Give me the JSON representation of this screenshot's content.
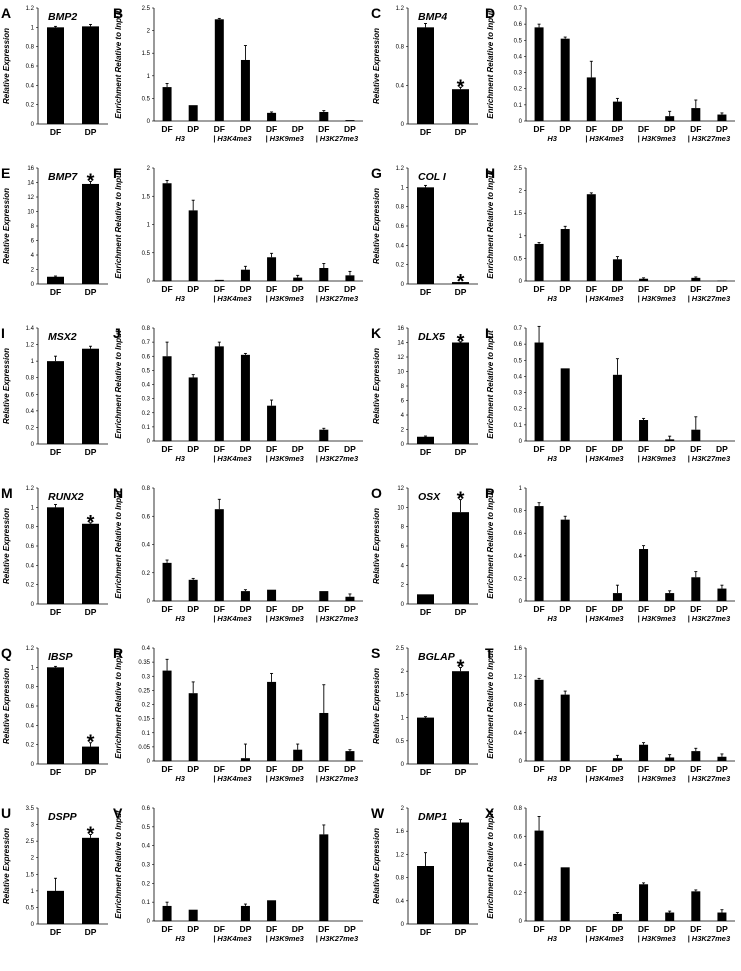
{
  "axis_labels": {
    "expression": "Relative Expression",
    "enrichment": "Enrichment Relative to Input"
  },
  "chart_data": [
    {
      "panel": "A",
      "type": "bar",
      "gene": "BMP2",
      "ylabel": "Relative Expression",
      "ylim": [
        0,
        1.2
      ],
      "yticks": [
        "0",
        "0.2",
        "0.4",
        "0.6",
        "0.8",
        "1",
        "1.2"
      ],
      "categories": [
        "DF",
        "DP"
      ],
      "values": [
        1.0,
        1.01
      ],
      "errors": [
        0.01,
        0.02
      ],
      "significant": [
        false,
        false
      ]
    },
    {
      "panel": "B",
      "type": "bar",
      "ylabel": "Enrichment Relative to Input",
      "ylim": [
        0,
        2.5
      ],
      "yticks": [
        "0",
        "0.5",
        "1",
        "1.5",
        "2",
        "2.5"
      ],
      "groups": [
        "H3",
        "| H3K4me3",
        "| H3K9me3",
        "| H3K27me3"
      ],
      "categories": [
        "DF",
        "DP",
        "DF",
        "DP",
        "DF",
        "DP",
        "DF",
        "DP"
      ],
      "values": [
        0.75,
        0.35,
        2.25,
        1.35,
        0.18,
        0.0,
        0.2,
        0.02
      ],
      "errors": [
        0.08,
        0.0,
        0.02,
        0.32,
        0.02,
        0.0,
        0.03,
        0.0
      ]
    },
    {
      "panel": "C",
      "type": "bar",
      "gene": "BMP4",
      "ylabel": "Relative Expression",
      "ylim": [
        0,
        1.2
      ],
      "yticks": [
        "0",
        "0.4",
        "0.8",
        "1.2"
      ],
      "categories": [
        "DF",
        "DP"
      ],
      "values": [
        1.0,
        0.36
      ],
      "errors": [
        0.04,
        0.02
      ],
      "significant": [
        false,
        true
      ]
    },
    {
      "panel": "D",
      "type": "bar",
      "ylabel": "Enrichment Relative to Input",
      "ylim": [
        0,
        0.7
      ],
      "yticks": [
        "0",
        "0.1",
        "0.2",
        "0.3",
        "0.4",
        "0.5",
        "0.6",
        "0.7"
      ],
      "groups": [
        "H3",
        "| H3K4me3",
        "| H3K9me3",
        "| H3K27me3"
      ],
      "categories": [
        "DF",
        "DP",
        "DF",
        "DP",
        "DF",
        "DP",
        "DF",
        "DP"
      ],
      "values": [
        0.58,
        0.51,
        0.27,
        0.12,
        0.0,
        0.03,
        0.08,
        0.04
      ],
      "errors": [
        0.02,
        0.01,
        0.1,
        0.02,
        0.0,
        0.03,
        0.05,
        0.01
      ]
    },
    {
      "panel": "E",
      "type": "bar",
      "gene": "BMP7",
      "ylabel": "Relative Expression",
      "ylim": [
        0,
        16
      ],
      "yticks": [
        "0",
        "2",
        "4",
        "6",
        "8",
        "10",
        "12",
        "14",
        "16"
      ],
      "categories": [
        "DF",
        "DP"
      ],
      "values": [
        1.0,
        13.8
      ],
      "errors": [
        0.1,
        0.35
      ],
      "significant": [
        false,
        true
      ]
    },
    {
      "panel": "F",
      "type": "bar",
      "ylabel": "Enrichment Relative to Input",
      "ylim": [
        0,
        2
      ],
      "yticks": [
        "0",
        "0.5",
        "1",
        "1.5",
        "2"
      ],
      "groups": [
        "H3",
        "| H3K4me3",
        "| H3K9me3",
        "| H3K27me3"
      ],
      "categories": [
        "DF",
        "DP",
        "DF",
        "DP",
        "DF",
        "DP",
        "DF",
        "DP"
      ],
      "values": [
        1.73,
        1.25,
        0.02,
        0.2,
        0.42,
        0.06,
        0.23,
        0.1
      ],
      "errors": [
        0.05,
        0.18,
        0.0,
        0.06,
        0.07,
        0.04,
        0.08,
        0.07
      ]
    },
    {
      "panel": "G",
      "type": "bar",
      "gene": "COL I",
      "ylabel": "Relative Expression",
      "ylim": [
        0,
        1.2
      ],
      "yticks": [
        "0",
        "0.2",
        "0.4",
        "0.6",
        "0.8",
        "1",
        "1.2"
      ],
      "categories": [
        "DF",
        "DP"
      ],
      "values": [
        1.0,
        0.02
      ],
      "errors": [
        0.02,
        0.0
      ],
      "significant": [
        false,
        true
      ]
    },
    {
      "panel": "H",
      "type": "bar",
      "ylabel": "Enrichment Relative to Input",
      "ylim": [
        0,
        2.5
      ],
      "yticks": [
        "0",
        "0.5",
        "1",
        "1.5",
        "2",
        "2.5"
      ],
      "groups": [
        "H3",
        "| H3K4me3",
        "| H3K9me3",
        "| H3K27me3"
      ],
      "categories": [
        "DF",
        "DP",
        "DF",
        "DP",
        "DF",
        "DP",
        "DF",
        "DP"
      ],
      "values": [
        0.82,
        1.15,
        1.92,
        0.48,
        0.05,
        0.0,
        0.07,
        0.01
      ],
      "errors": [
        0.03,
        0.06,
        0.03,
        0.06,
        0.02,
        0.0,
        0.02,
        0.0
      ]
    },
    {
      "panel": "I",
      "type": "bar",
      "gene": "MSX2",
      "ylabel": "Relative Expression",
      "ylim": [
        0,
        1.4
      ],
      "yticks": [
        "0",
        "0.2",
        "0.4",
        "0.6",
        "0.8",
        "1",
        "1.2",
        "1.4"
      ],
      "categories": [
        "DF",
        "DP"
      ],
      "values": [
        1.0,
        1.15
      ],
      "errors": [
        0.06,
        0.03
      ],
      "significant": [
        false,
        false
      ]
    },
    {
      "panel": "J",
      "type": "bar",
      "ylabel": "Enrichment Relative to Input",
      "ylim": [
        0,
        0.8
      ],
      "yticks": [
        "0",
        "0.1",
        "0.2",
        "0.3",
        "0.4",
        "0.5",
        "0.6",
        "0.7",
        "0.8"
      ],
      "groups": [
        "H3",
        "| H3K4me3",
        "| H3K9me3",
        "| H3K27me3"
      ],
      "categories": [
        "DF",
        "DP",
        "DF",
        "DP",
        "DF",
        "DP",
        "DF",
        "DP"
      ],
      "values": [
        0.6,
        0.45,
        0.67,
        0.61,
        0.25,
        0.0,
        0.08,
        0.0
      ],
      "errors": [
        0.1,
        0.02,
        0.03,
        0.01,
        0.04,
        0.0,
        0.01,
        0.0
      ]
    },
    {
      "panel": "K",
      "type": "bar",
      "gene": "DLX5",
      "ylabel": "Relative Expression",
      "ylim": [
        0,
        16
      ],
      "yticks": [
        "0",
        "2",
        "4",
        "6",
        "8",
        "10",
        "12",
        "14",
        "16"
      ],
      "categories": [
        "DF",
        "DP"
      ],
      "values": [
        1.0,
        14.0
      ],
      "errors": [
        0.1,
        0.1
      ],
      "significant": [
        false,
        true
      ]
    },
    {
      "panel": "L",
      "type": "bar",
      "ylabel": "Enrichment Relative to Input",
      "ylim": [
        0,
        0.7
      ],
      "yticks": [
        "0",
        "0.1",
        "0.2",
        "0.3",
        "0.4",
        "0.5",
        "0.6",
        "0.7"
      ],
      "groups": [
        "H3",
        "| H3K4me3",
        "| H3K9me3",
        "| H3K27me3"
      ],
      "categories": [
        "DF",
        "DP",
        "DF",
        "DP",
        "DF",
        "DP",
        "DF",
        "DP"
      ],
      "values": [
        0.61,
        0.45,
        0.0,
        0.41,
        0.13,
        0.01,
        0.07,
        0.0
      ],
      "errors": [
        0.1,
        0.0,
        0.0,
        0.1,
        0.01,
        0.02,
        0.08,
        0.0
      ]
    },
    {
      "panel": "M",
      "type": "bar",
      "gene": "RUNX2",
      "ylabel": "Relative Expression",
      "ylim": [
        0,
        1.2
      ],
      "yticks": [
        "0",
        "0.2",
        "0.4",
        "0.6",
        "0.8",
        "1",
        "1.2"
      ],
      "categories": [
        "DF",
        "DP"
      ],
      "values": [
        1.0,
        0.83
      ],
      "errors": [
        0.03,
        0.01
      ],
      "significant": [
        false,
        true
      ]
    },
    {
      "panel": "N",
      "type": "bar",
      "ylabel": "Enrichment Relative to Input",
      "ylim": [
        0,
        0.8
      ],
      "yticks": [
        "0",
        "0.2",
        "0.4",
        "0.6",
        "0.8"
      ],
      "groups": [
        "H3",
        "| H3K4me3",
        "| H3K9me3",
        "| H3K27me3"
      ],
      "categories": [
        "DF",
        "DP",
        "DF",
        "DP",
        "DF",
        "DP",
        "DF",
        "DP"
      ],
      "values": [
        0.27,
        0.15,
        0.65,
        0.07,
        0.08,
        0.0,
        0.07,
        0.03
      ],
      "errors": [
        0.02,
        0.01,
        0.07,
        0.01,
        0.0,
        0.0,
        0.0,
        0.02
      ]
    },
    {
      "panel": "O",
      "type": "bar",
      "gene": "OSX",
      "ylabel": "Relative Expression",
      "ylim": [
        0,
        12
      ],
      "yticks": [
        "0",
        "2",
        "4",
        "6",
        "8",
        "10",
        "12"
      ],
      "categories": [
        "DF",
        "DP"
      ],
      "values": [
        1.0,
        9.5
      ],
      "errors": [
        0.0,
        1.3
      ],
      "significant": [
        false,
        true
      ]
    },
    {
      "panel": "P",
      "type": "bar",
      "ylabel": "Enrichment Relative to Input",
      "ylim": [
        0,
        1
      ],
      "yticks": [
        "0",
        "0.2",
        "0.4",
        "0.6",
        "0.8",
        "1"
      ],
      "groups": [
        "H3",
        "| H3K4me3",
        "| H3K9me3",
        "| H3K27me3"
      ],
      "categories": [
        "DF",
        "DP",
        "DF",
        "DP",
        "DF",
        "DP",
        "DF",
        "DP"
      ],
      "values": [
        0.84,
        0.72,
        0.0,
        0.07,
        0.46,
        0.07,
        0.21,
        0.11
      ],
      "errors": [
        0.03,
        0.03,
        0.0,
        0.07,
        0.03,
        0.02,
        0.05,
        0.03
      ]
    },
    {
      "panel": "Q",
      "type": "bar",
      "gene": "IBSP",
      "ylabel": "Relative Expression",
      "ylim": [
        0,
        1.2
      ],
      "yticks": [
        "0",
        "0.2",
        "0.4",
        "0.6",
        "0.8",
        "1",
        "1.2"
      ],
      "categories": [
        "DF",
        "DP"
      ],
      "values": [
        1.0,
        0.18
      ],
      "errors": [
        0.01,
        0.04
      ],
      "significant": [
        false,
        true
      ]
    },
    {
      "panel": "R",
      "type": "bar",
      "ylabel": "Enrichment Relative to Input",
      "ylim": [
        0,
        0.4
      ],
      "yticks": [
        "0",
        "0.05",
        "0.1",
        "0.15",
        "0.2",
        "0.25",
        "0.3",
        "0.35",
        "0.4"
      ],
      "groups": [
        "H3",
        "| H3K4me3",
        "| H3K9me3",
        "| H3K27me3"
      ],
      "categories": [
        "DF",
        "DP",
        "DF",
        "DP",
        "DF",
        "DP",
        "DF",
        "DP"
      ],
      "values": [
        0.32,
        0.24,
        0.0,
        0.01,
        0.28,
        0.04,
        0.17,
        0.035
      ],
      "errors": [
        0.04,
        0.04,
        0.0,
        0.05,
        0.03,
        0.02,
        0.1,
        0.005
      ]
    },
    {
      "panel": "S",
      "type": "bar",
      "gene": "BGLAP",
      "ylabel": "Relative Expression",
      "ylim": [
        0,
        2.5
      ],
      "yticks": [
        "0",
        "0.5",
        "1",
        "1.5",
        "2",
        "2.5"
      ],
      "categories": [
        "DF",
        "DP"
      ],
      "values": [
        1.0,
        2.0
      ],
      "errors": [
        0.02,
        0.08
      ],
      "significant": [
        false,
        true
      ]
    },
    {
      "panel": "T",
      "type": "bar",
      "ylabel": "Enrichment Relative to Input",
      "ylim": [
        0,
        1.6
      ],
      "yticks": [
        "0",
        "0.4",
        "0.8",
        "1.2",
        "1.6"
      ],
      "groups": [
        "H3",
        "| H3K4me3",
        "| H3K9me3",
        "| H3K27me3"
      ],
      "categories": [
        "DF",
        "DP",
        "DF",
        "DP",
        "DF",
        "DP",
        "DF",
        "DP"
      ],
      "values": [
        1.15,
        0.94,
        0.0,
        0.04,
        0.23,
        0.05,
        0.14,
        0.06
      ],
      "errors": [
        0.02,
        0.05,
        0.0,
        0.04,
        0.03,
        0.04,
        0.04,
        0.04
      ]
    },
    {
      "panel": "U",
      "type": "bar",
      "gene": "DSPP",
      "ylabel": "Relative Expression",
      "ylim": [
        0,
        3.5
      ],
      "yticks": [
        "0",
        "0.5",
        "1",
        "1.5",
        "2",
        "2.5",
        "3",
        "3.5"
      ],
      "categories": [
        "DF",
        "DP"
      ],
      "values": [
        1.0,
        2.6
      ],
      "errors": [
        0.38,
        0.1
      ],
      "significant": [
        false,
        true
      ]
    },
    {
      "panel": "V",
      "type": "bar",
      "ylabel": "Enrichment Relative to Input",
      "ylim": [
        0,
        0.6
      ],
      "yticks": [
        "0",
        "0.1",
        "0.2",
        "0.3",
        "0.4",
        "0.5",
        "0.6"
      ],
      "groups": [
        "H3",
        "| H3K4me3",
        "| H3K9me3",
        "| H3K27me3"
      ],
      "categories": [
        "DF",
        "DP",
        "DF",
        "DP",
        "DF",
        "DP",
        "DF",
        "DP"
      ],
      "values": [
        0.08,
        0.06,
        0.0,
        0.08,
        0.11,
        0.0,
        0.46,
        0.0
      ],
      "errors": [
        0.02,
        0.0,
        0.0,
        0.01,
        0.0,
        0.0,
        0.05,
        0.0
      ]
    },
    {
      "panel": "W",
      "type": "bar",
      "gene": "DMP1",
      "ylabel": "Relative Expression",
      "ylim": [
        0,
        2
      ],
      "yticks": [
        "0",
        "0.4",
        "0.8",
        "1.2",
        "1.6",
        "2"
      ],
      "categories": [
        "DF",
        "DP"
      ],
      "values": [
        1.0,
        1.75
      ],
      "errors": [
        0.23,
        0.05
      ],
      "significant": [
        false,
        false
      ]
    },
    {
      "panel": "X",
      "type": "bar",
      "ylabel": "Enrichment Relative to Input",
      "ylim": [
        0,
        0.8
      ],
      "yticks": [
        "0",
        "0.2",
        "0.4",
        "0.6",
        "0.8"
      ],
      "groups": [
        "H3",
        "| H3K4me3",
        "| H3K9me3",
        "| H3K27me3"
      ],
      "categories": [
        "DF",
        "DP",
        "DF",
        "DP",
        "DF",
        "DP",
        "DF",
        "DP"
      ],
      "values": [
        0.64,
        0.38,
        0.0,
        0.05,
        0.26,
        0.06,
        0.21,
        0.06
      ],
      "errors": [
        0.1,
        0.0,
        0.0,
        0.01,
        0.01,
        0.01,
        0.01,
        0.02
      ]
    }
  ]
}
